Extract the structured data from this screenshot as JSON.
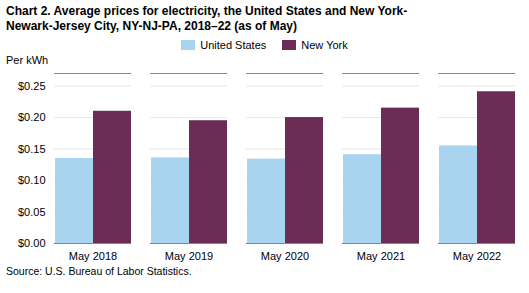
{
  "chart_data": {
    "type": "bar",
    "title": "Chart 2.  Average prices for electricity, the United States and New York-\nNewark-Jersey City, NY-NJ-PA, 2018–22 (as of May)",
    "ylabel": "Per kWh",
    "source": "Source: U.S. Bureau of Labor Statistics.",
    "categories": [
      "May 2018",
      "May 2019",
      "May 2020",
      "May 2021",
      "May 2022"
    ],
    "series": [
      {
        "name": "United States",
        "color": "#a8d4f0",
        "values": [
          0.135,
          0.136,
          0.134,
          0.141,
          0.155
        ]
      },
      {
        "name": "New York",
        "color": "#6B2D55",
        "values": [
          0.21,
          0.195,
          0.2,
          0.215,
          0.241
        ]
      }
    ],
    "ylim": [
      0,
      0.27
    ],
    "yticks": [
      {
        "value": 0.0,
        "label": "$0.00"
      },
      {
        "value": 0.05,
        "label": "$0.05"
      },
      {
        "value": 0.1,
        "label": "$0.10"
      },
      {
        "value": 0.15,
        "label": "$0.15"
      },
      {
        "value": 0.2,
        "label": "$0.20"
      },
      {
        "value": 0.25,
        "label": "$0.25"
      }
    ],
    "grid": true,
    "legend": "top"
  }
}
